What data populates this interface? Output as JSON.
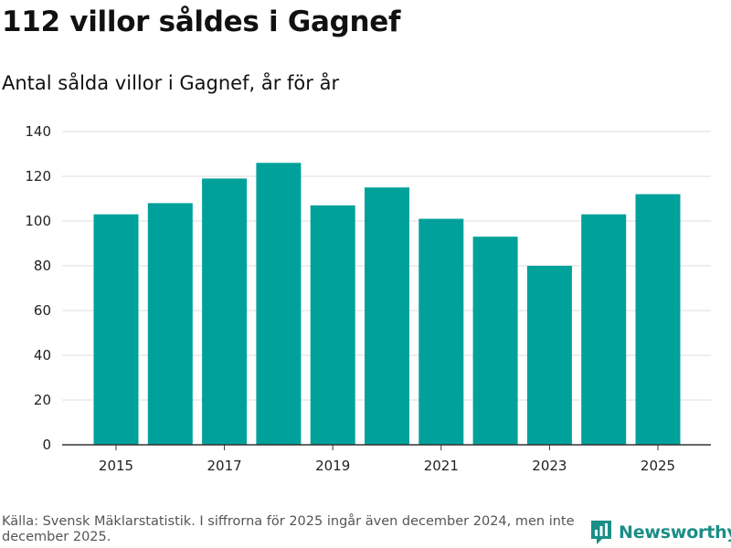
{
  "title": "112 villor såldes i Gagnef",
  "subtitle": "Antal sålda villor i Gagnef, år för år",
  "footer": {
    "source": "Källa: Svensk Mäklarstatistik. I siffrorna för 2025 ingår även december 2024, men inte december 2025."
  },
  "logo": {
    "name": "Newsworthy"
  },
  "colors": {
    "bar": "#00a19a",
    "grid": "#dddddd",
    "axis": "#333333",
    "logo": "#1a8f86"
  },
  "chart_data": {
    "type": "bar",
    "title": "112 villor såldes i Gagnef",
    "subtitle": "Antal sålda villor i Gagnef, år för år",
    "categories": [
      "2015",
      "2016",
      "2017",
      "2018",
      "2019",
      "2020",
      "2021",
      "2022",
      "2023",
      "2024",
      "2025"
    ],
    "values": [
      103,
      108,
      119,
      126,
      107,
      115,
      101,
      93,
      80,
      103,
      112
    ],
    "x_tick_labels": [
      "2015",
      "2017",
      "2019",
      "2021",
      "2023",
      "2025"
    ],
    "y_ticks": [
      0,
      20,
      40,
      60,
      80,
      100,
      120,
      140
    ],
    "ylim": [
      0,
      140
    ],
    "xlabel": "",
    "ylabel": "",
    "grid": true
  }
}
